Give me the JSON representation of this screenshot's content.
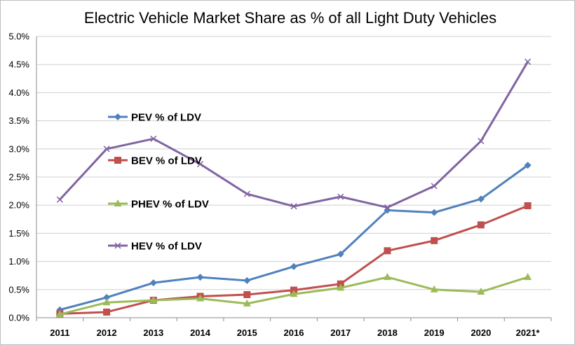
{
  "chart_data": {
    "type": "line",
    "title": "Electric Vehicle Market Share as % of all Light Duty Vehicles",
    "xlabel": "",
    "ylabel": "",
    "categories": [
      "2011",
      "2012",
      "2013",
      "2014",
      "2015",
      "2016",
      "2017",
      "2018",
      "2019",
      "2020",
      "2021*"
    ],
    "ylim": [
      0,
      5.0
    ],
    "yticks": [
      "0.0%",
      "0.5%",
      "1.0%",
      "1.5%",
      "2.0%",
      "2.5%",
      "3.0%",
      "3.5%",
      "4.0%",
      "4.5%",
      "5.0%"
    ],
    "grid": true,
    "legend_position": "left, inside plot area",
    "series": [
      {
        "name": "PEV % of LDV",
        "color": "#4F81BD",
        "marker": "diamond",
        "values": [
          0.14,
          0.36,
          0.62,
          0.72,
          0.66,
          0.91,
          1.13,
          1.91,
          1.87,
          2.11,
          2.71
        ]
      },
      {
        "name": "BEV % of LDV",
        "color": "#C0504D",
        "marker": "square",
        "values": [
          0.07,
          0.1,
          0.31,
          0.38,
          0.41,
          0.49,
          0.6,
          1.19,
          1.37,
          1.65,
          1.99
        ]
      },
      {
        "name": "PHEV % of LDV",
        "color": "#9BBB59",
        "marker": "triangle",
        "values": [
          0.06,
          0.27,
          0.31,
          0.34,
          0.25,
          0.42,
          0.53,
          0.72,
          0.5,
          0.46,
          0.72
        ]
      },
      {
        "name": "HEV % of LDV",
        "color": "#8064A2",
        "marker": "x",
        "values": [
          2.1,
          3.0,
          3.18,
          2.73,
          2.2,
          1.98,
          2.15,
          1.96,
          2.34,
          3.14,
          4.55
        ]
      }
    ]
  }
}
